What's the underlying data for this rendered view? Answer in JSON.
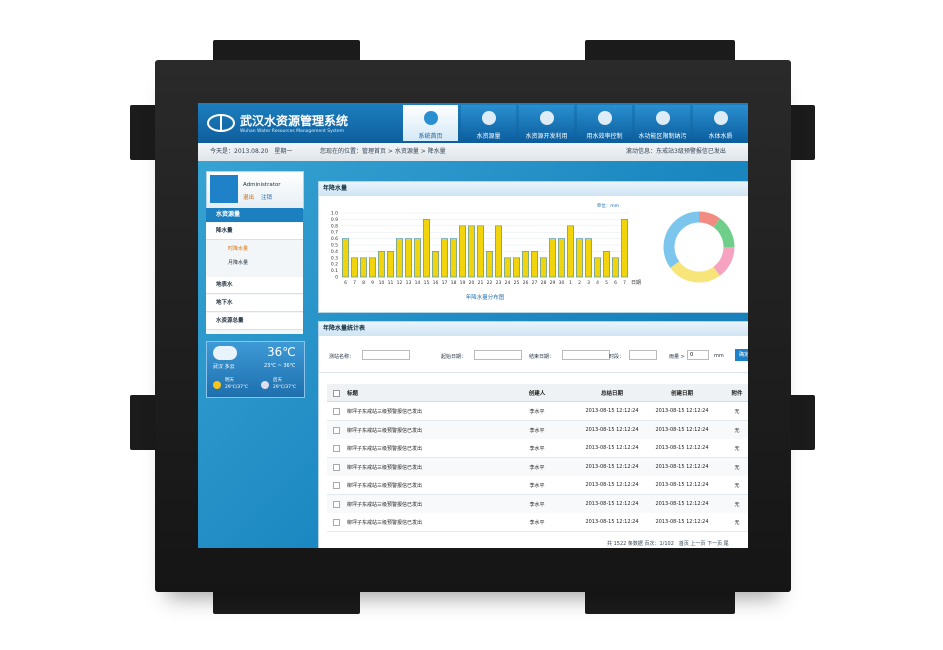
{
  "header": {
    "title": "武汉水资源管理系统",
    "subtitle": "Wuhan Water Resources Management System",
    "tabs": [
      "系统首页",
      "水资源量",
      "水资源开发利用",
      "用水效率控制",
      "水功能区限制纳污",
      "水体水质"
    ]
  },
  "status": {
    "date": "今天是：2013.08.20　星期一",
    "location": "您现在的位置：管理首页 > 水资源量 > 降水量",
    "news": "滚动信息：东戒站3级预警报信已发出"
  },
  "user": {
    "name": "Administrator",
    "links": [
      "退出",
      "注销"
    ]
  },
  "menu": {
    "title": "水资源量",
    "items": [
      {
        "label": "降水量",
        "children": [
          "时降水量",
          "月降水量"
        ]
      },
      {
        "label": "地表水"
      },
      {
        "label": "地下水"
      },
      {
        "label": "水资源总量"
      }
    ]
  },
  "weather": {
    "temp": "36℃",
    "city": "武汉 多云",
    "range": "23℃ ~ 36℃",
    "forecast": [
      {
        "day": "明天",
        "temp": "29℃/37℃"
      },
      {
        "day": "后天",
        "temp": "29℃/37℃"
      }
    ]
  },
  "chart": {
    "type": "bar",
    "title": "年降水量",
    "unit": "单位：mm",
    "caption": "年降水量分布图",
    "x_label": "日期",
    "color": "#f2d40c",
    "categories": [
      "6",
      "7",
      "8",
      "9",
      "10",
      "11",
      "12",
      "13",
      "14",
      "15",
      "16",
      "17",
      "18",
      "19",
      "20",
      "21",
      "22",
      "23",
      "24",
      "25",
      "26",
      "27",
      "28",
      "29",
      "30",
      "1",
      "2",
      "3",
      "4",
      "5",
      "6",
      "7"
    ],
    "values": [
      0.6,
      0.3,
      0.3,
      0.3,
      0.4,
      0.4,
      0.6,
      0.6,
      0.6,
      0.9,
      0.4,
      0.6,
      0.6,
      0.8,
      0.8,
      0.8,
      0.4,
      0.8,
      0.3,
      0.3,
      0.4,
      0.4,
      0.3,
      0.6,
      0.6,
      0.8,
      0.6,
      0.6,
      0.3,
      0.4,
      0.3,
      0.9
    ],
    "ylim": [
      0,
      1
    ],
    "yticks": [
      0,
      0.1,
      0.2,
      0.3,
      0.4,
      0.5,
      0.6,
      0.7,
      0.8,
      0.9,
      {
        "value": 1,
        "label": "1.0"
      }
    ]
  },
  "donut": {
    "type": "pie",
    "values": [
      10,
      15,
      15,
      25,
      35
    ],
    "colors": [
      "#f28b82",
      "#6fcf8a",
      "#f5a3c0",
      "#f7e57a",
      "#7cc6ee"
    ]
  },
  "table": {
    "title": "年降水量统计表",
    "filters": [
      "测站名称：",
      "起始日期：",
      "结束日期：",
      "时段："
    ],
    "rain": {
      "label": "雨量 > =",
      "value": "0",
      "unit": "mm"
    },
    "button": "确定",
    "columns": [
      "标题",
      "创建人",
      "总结日期",
      "创建日期",
      "附件"
    ],
    "rows": [
      [
        "柳坪子东戒站三级预警报信已发出",
        "李水平",
        "2013-08-15 12:12:24",
        "2013-08-15 12:12:24",
        "无"
      ],
      [
        "柳坪子东戒站三级预警报信已发出",
        "李水平",
        "2013-08-15 12:12:24",
        "2013-08-15 12:12:24",
        "无"
      ],
      [
        "柳坪子东戒站三级预警报信已发出",
        "李水平",
        "2013-08-15 12:12:24",
        "2013-08-15 12:12:24",
        "无"
      ],
      [
        "柳坪子东戒站三级预警报信已发出",
        "李水平",
        "2013-08-15 12:12:24",
        "2013-08-15 12:12:24",
        "无"
      ],
      [
        "柳坪子东戒站三级预警报信已发出",
        "李水平",
        "2013-08-15 12:12:24",
        "2013-08-15 12:12:24",
        "无"
      ],
      [
        "柳坪子东戒站三级预警报信已发出",
        "李水平",
        "2013-08-15 12:12:24",
        "2013-08-15 12:12:24",
        "无"
      ],
      [
        "柳坪子东戒站三级预警报信已发出",
        "李水平",
        "2013-08-15 12:12:24",
        "2013-08-15 12:12:24",
        "无"
      ]
    ],
    "footer": "共 1522 条数据 页次：1/102　首页 上一页 下一页 尾"
  }
}
